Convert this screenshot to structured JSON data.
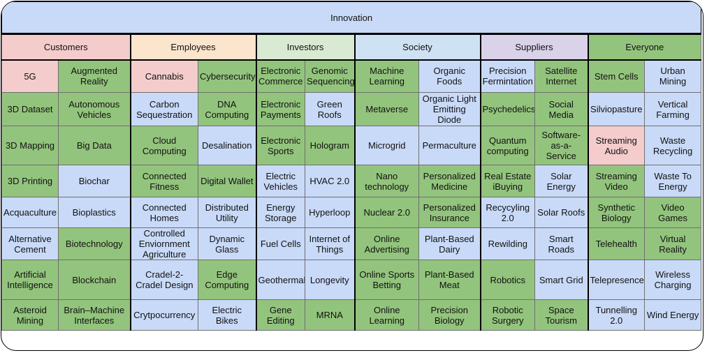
{
  "title": "Innovation",
  "categories": [
    {
      "label": "Customers",
      "color": "#f4cccc"
    },
    {
      "label": "Employees",
      "color": "#fce5cd"
    },
    {
      "label": "Investors",
      "color": "#d9ead3"
    },
    {
      "label": "Society",
      "color": "#cfe2f3"
    },
    {
      "label": "Suppliers",
      "color": "#d9d2e9"
    },
    {
      "label": "Everyone",
      "color": "#93c47d"
    }
  ],
  "rows": [
    [
      {
        "text": "5G",
        "color": "pink"
      },
      {
        "text": "Augmented Reality",
        "color": "green"
      },
      {
        "text": "Cannabis",
        "color": "pink"
      },
      {
        "text": "Cybersecurity",
        "color": "green"
      },
      {
        "text": "Electronic Commerce",
        "color": "green"
      },
      {
        "text": "Genomic Sequencing",
        "color": "green"
      },
      {
        "text": "Machine Learning",
        "color": "green"
      },
      {
        "text": "Organic Foods",
        "color": "blue"
      },
      {
        "text": "Precision Fermintation",
        "color": "blue"
      },
      {
        "text": "Satellite Internet",
        "color": "green"
      },
      {
        "text": "Stem Cells",
        "color": "green"
      },
      {
        "text": "Urban Mining",
        "color": "blue"
      }
    ],
    [
      {
        "text": "3D Dataset",
        "color": "green"
      },
      {
        "text": "Autonomous Vehicles",
        "color": "green"
      },
      {
        "text": "Carbon Sequestration",
        "color": "blue"
      },
      {
        "text": "DNA Computing",
        "color": "green"
      },
      {
        "text": "Electronic Payments",
        "color": "green"
      },
      {
        "text": "Green Roofs",
        "color": "blue"
      },
      {
        "text": "Metaverse",
        "color": "green"
      },
      {
        "text": "Organic Light Emitting Diode",
        "color": "blue"
      },
      {
        "text": "Psychedelics",
        "color": "green"
      },
      {
        "text": "Social Media",
        "color": "green"
      },
      {
        "text": "Silviopasture",
        "color": "blue"
      },
      {
        "text": "Vertical Farming",
        "color": "blue"
      }
    ],
    [
      {
        "text": "3D Mapping",
        "color": "green"
      },
      {
        "text": "Big Data",
        "color": "green"
      },
      {
        "text": "Cloud Computing",
        "color": "green"
      },
      {
        "text": "Desalination",
        "color": "blue"
      },
      {
        "text": "Electronic Sports",
        "color": "green"
      },
      {
        "text": "Hologram",
        "color": "green"
      },
      {
        "text": "Microgrid",
        "color": "blue"
      },
      {
        "text": "Permaculture",
        "color": "blue"
      },
      {
        "text": "Quantum computing",
        "color": "green"
      },
      {
        "text": "Software-as-a-Service",
        "color": "green"
      },
      {
        "text": "Streaming Audio",
        "color": "pink"
      },
      {
        "text": "Waste Recycling",
        "color": "blue"
      }
    ],
    [
      {
        "text": "3D Printing",
        "color": "green"
      },
      {
        "text": "Biochar",
        "color": "blue"
      },
      {
        "text": "Connected Fitness",
        "color": "green"
      },
      {
        "text": "Digital Wallet",
        "color": "green"
      },
      {
        "text": "Electric Vehicles",
        "color": "blue"
      },
      {
        "text": "HVAC 2.0",
        "color": "blue"
      },
      {
        "text": "Nano technology",
        "color": "green"
      },
      {
        "text": "Personalized Medicine",
        "color": "green"
      },
      {
        "text": "Real Estate iBuying",
        "color": "green"
      },
      {
        "text": "Solar Energy",
        "color": "blue"
      },
      {
        "text": "Streaming Video",
        "color": "green"
      },
      {
        "text": "Waste To Energy",
        "color": "blue"
      }
    ],
    [
      {
        "text": "Acquaculture",
        "color": "blue"
      },
      {
        "text": "Bioplastics",
        "color": "blue"
      },
      {
        "text": "Connected Homes",
        "color": "blue"
      },
      {
        "text": "Distributed Utility",
        "color": "blue"
      },
      {
        "text": "Energy Storage",
        "color": "blue"
      },
      {
        "text": "Hyperloop",
        "color": "blue"
      },
      {
        "text": "Nuclear 2.0",
        "color": "green"
      },
      {
        "text": "Personalized Insurance",
        "color": "green"
      },
      {
        "text": "Recycyling 2.0",
        "color": "blue"
      },
      {
        "text": "Solar Roofs",
        "color": "blue"
      },
      {
        "text": "Synthetic Biology",
        "color": "green"
      },
      {
        "text": "Video Games",
        "color": "green"
      }
    ],
    [
      {
        "text": "Alternative Cement",
        "color": "blue"
      },
      {
        "text": "Biotechnology",
        "color": "green"
      },
      {
        "text": "Controlled Enviornment Agriculture",
        "color": "blue"
      },
      {
        "text": "Dynamic Glass",
        "color": "blue"
      },
      {
        "text": "Fuel Cells",
        "color": "blue"
      },
      {
        "text": "Internet of Things",
        "color": "blue"
      },
      {
        "text": "Online Advertising",
        "color": "green"
      },
      {
        "text": "Plant-Based Dairy",
        "color": "blue"
      },
      {
        "text": "Rewilding",
        "color": "blue"
      },
      {
        "text": "Smart Roads",
        "color": "blue"
      },
      {
        "text": "Telehealth",
        "color": "green"
      },
      {
        "text": "Virtual Reality",
        "color": "green"
      }
    ],
    [
      {
        "text": "Artificial Intelligence",
        "color": "green"
      },
      {
        "text": "Blockchain",
        "color": "green"
      },
      {
        "text": "Cradel-2-Cradel Design",
        "color": "blue"
      },
      {
        "text": "Edge Computing",
        "color": "green"
      },
      {
        "text": "Geothermal",
        "color": "blue"
      },
      {
        "text": "Longevity",
        "color": "blue"
      },
      {
        "text": "Online Sports Betting",
        "color": "green"
      },
      {
        "text": "Plant-Based Meat",
        "color": "green"
      },
      {
        "text": "Robotics",
        "color": "green"
      },
      {
        "text": "Smart Grid",
        "color": "blue"
      },
      {
        "text": "Telepresence",
        "color": "blue"
      },
      {
        "text": "Wireless Charging",
        "color": "blue"
      }
    ],
    [
      {
        "text": "Asteroid Mining",
        "color": "green"
      },
      {
        "text": "Brain–Machine Interfaces",
        "color": "green"
      },
      {
        "text": "Crytpocurrency",
        "color": "blue"
      },
      {
        "text": "Electric Bikes",
        "color": "blue"
      },
      {
        "text": "Gene Editing",
        "color": "green"
      },
      {
        "text": "MRNA",
        "color": "green"
      },
      {
        "text": "Online Learning",
        "color": "green"
      },
      {
        "text": "Precision Biology",
        "color": "green"
      },
      {
        "text": "Robotic Surgery",
        "color": "green"
      },
      {
        "text": "Space Tourism",
        "color": "green"
      },
      {
        "text": "Tunnelling 2.0",
        "color": "blue"
      },
      {
        "text": "Wind Energy",
        "color": "blue"
      }
    ]
  ]
}
